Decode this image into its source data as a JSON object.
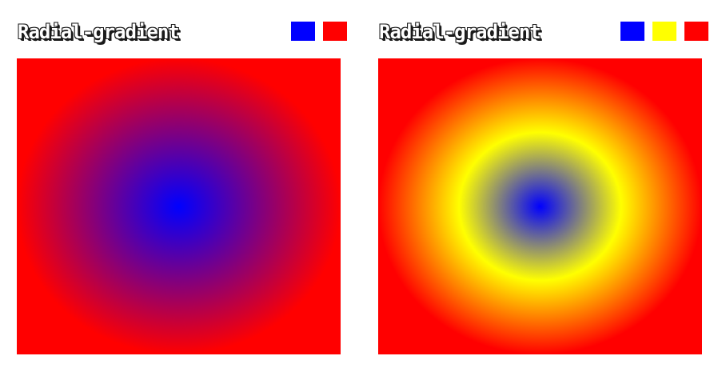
{
  "panels": [
    {
      "title": "Radial-gradient",
      "colors": [
        "#0000ff",
        "#ff0000"
      ],
      "color_names": [
        "blue",
        "red"
      ]
    },
    {
      "title": "Radial-gradient",
      "colors": [
        "#0000ff",
        "#ffff00",
        "#ff0000"
      ],
      "color_names": [
        "blue",
        "yellow",
        "red"
      ]
    }
  ]
}
